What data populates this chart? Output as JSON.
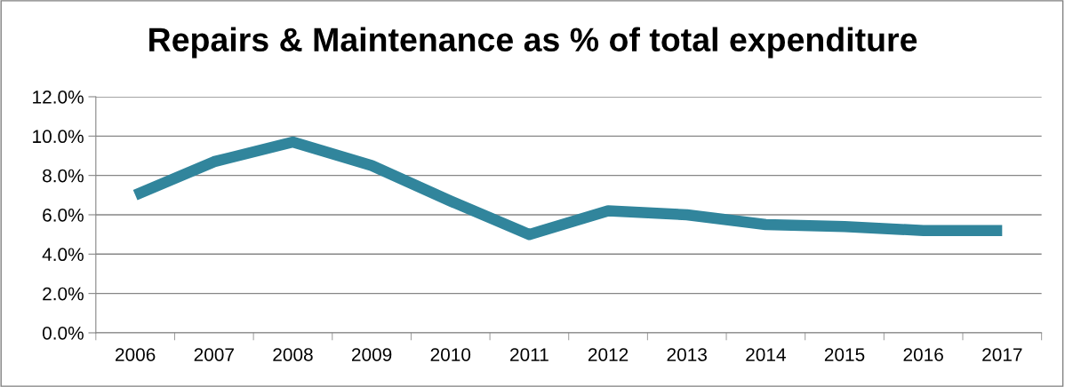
{
  "chart_data": {
    "type": "line",
    "title": "Repairs & Maintenance as % of total expenditure",
    "categories": [
      "2006",
      "2007",
      "2008",
      "2009",
      "2010",
      "2011",
      "2012",
      "2013",
      "2014",
      "2015",
      "2016",
      "2017"
    ],
    "series": [
      {
        "color": "#31859c",
        "values": [
          7.0,
          8.7,
          9.7,
          8.5,
          6.7,
          5.0,
          6.2,
          6.0,
          5.5,
          5.4,
          5.2,
          5.2
        ]
      }
    ],
    "ylim": [
      0,
      12
    ],
    "yticks": [
      {
        "value": 0,
        "label": "0.0%"
      },
      {
        "value": 2,
        "label": "2.0%"
      },
      {
        "value": 4,
        "label": "4.0%"
      },
      {
        "value": 6,
        "label": "6.0%"
      },
      {
        "value": 8,
        "label": "8.0%"
      },
      {
        "value": 10,
        "label": "10.0%"
      },
      {
        "value": 12,
        "label": "12.0%"
      }
    ],
    "grid": "y",
    "marker": "none",
    "line_style": "solid"
  }
}
